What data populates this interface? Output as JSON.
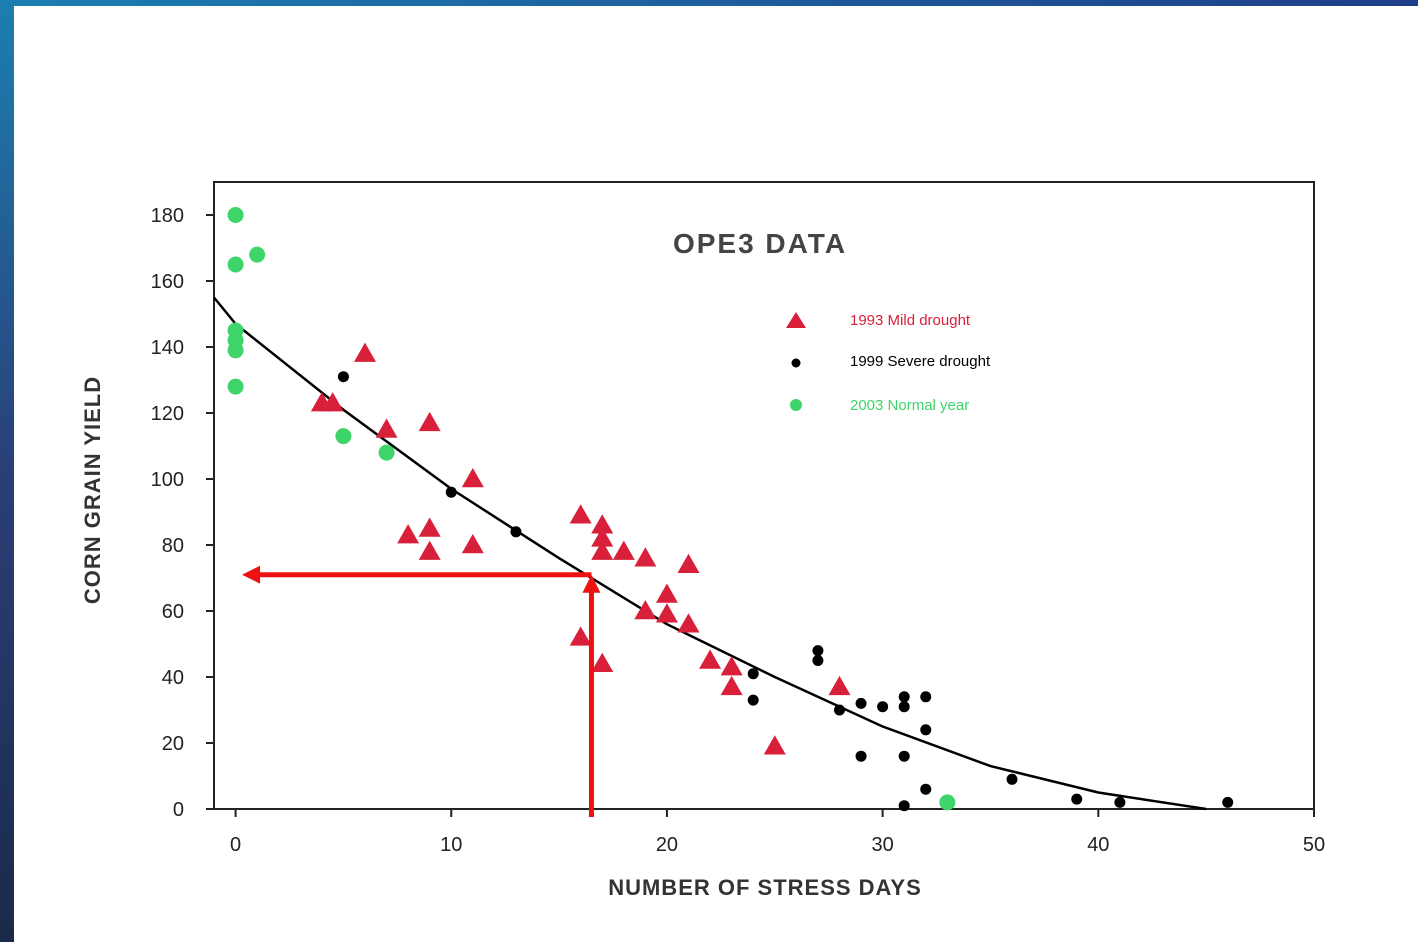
{
  "colors": {
    "frame_top": "#1f3e8a",
    "frame_left_top": "#1c7fb0",
    "frame_left_bottom": "#1b2a4a",
    "drought_1993": "#d8203a",
    "drought_1999": "#000000",
    "normal_2003": "#3ed46a",
    "curve": "#000000",
    "annotation_arrow": "#ee1111"
  },
  "chart_data": {
    "type": "scatter",
    "title": "OPE3 DATA",
    "xlabel": "NUMBER OF STRESS DAYS",
    "ylabel": "CORN GRAIN YIELD",
    "xlim": [
      -1,
      50
    ],
    "ylim": [
      0,
      190
    ],
    "xticks": [
      "0",
      "10",
      "20",
      "30",
      "40",
      "50"
    ],
    "xtick_values": [
      0,
      10,
      20,
      30,
      40,
      50
    ],
    "yticks": [
      "0",
      "20",
      "40",
      "60",
      "80",
      "100",
      "120",
      "140",
      "160",
      "180"
    ],
    "ytick_values": [
      0,
      20,
      40,
      60,
      80,
      100,
      120,
      140,
      160,
      180
    ],
    "legend_position": "top-right",
    "series": [
      {
        "name": "1993 Mild drought",
        "marker": "triangle",
        "color": "#d8203a",
        "x": [
          4,
          4.5,
          6,
          7,
          9,
          8,
          9,
          9,
          11,
          11,
          16,
          17,
          17,
          17,
          18,
          19,
          21,
          20,
          19,
          20,
          21,
          16,
          17,
          22,
          23,
          23,
          28,
          25
        ],
        "y": [
          123,
          123,
          138,
          115,
          117,
          83,
          85,
          78,
          100,
          80,
          89,
          86,
          82,
          78,
          78,
          76,
          74,
          65,
          60,
          59,
          56,
          52,
          44,
          45,
          43,
          37,
          37,
          19
        ]
      },
      {
        "name": "1999 Severe drought",
        "marker": "circle",
        "color": "#000000",
        "x": [
          5,
          10,
          13,
          24,
          24,
          27,
          27,
          28,
          29,
          30,
          31,
          31,
          32,
          32,
          29,
          31,
          32,
          31,
          36,
          39,
          41,
          46
        ],
        "y": [
          131,
          96,
          84,
          41,
          33,
          48,
          45,
          30,
          32,
          31,
          34,
          31,
          34,
          24,
          16,
          16,
          6,
          1,
          9,
          3,
          2,
          2
        ]
      },
      {
        "name": "2003 Normal year",
        "marker": "circle",
        "color": "#3ed46a",
        "x": [
          0,
          0,
          1,
          0,
          0,
          0,
          0,
          5,
          7,
          33
        ],
        "y": [
          180,
          165,
          168,
          145,
          142,
          139,
          128,
          113,
          108,
          2
        ]
      }
    ],
    "trend_curve": {
      "type": "quadratic",
      "x": [
        -1,
        0,
        5,
        10,
        15,
        20,
        25,
        30,
        35,
        40,
        45
      ],
      "y": [
        155,
        147,
        121,
        97,
        76,
        56,
        40,
        25,
        13,
        5,
        0
      ]
    },
    "annotation": {
      "type": "read-off arrows",
      "x_value": 16.5,
      "y_value": 71
    }
  }
}
